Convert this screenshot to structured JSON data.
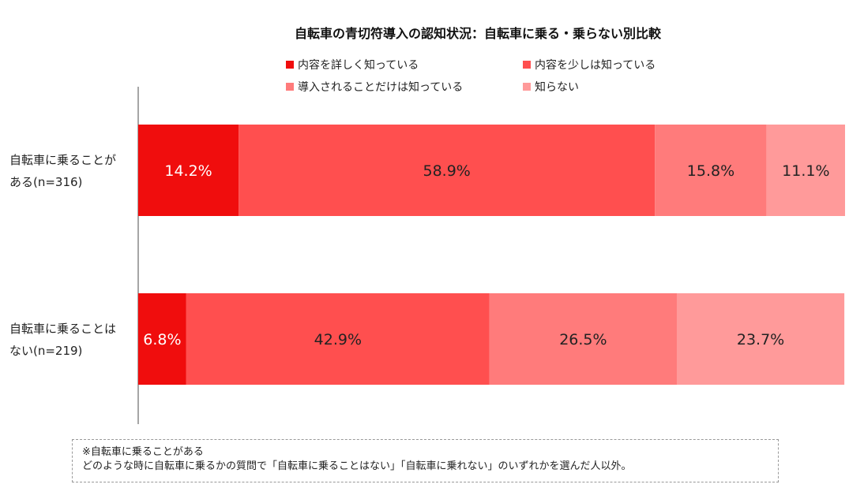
{
  "chart_data": {
    "type": "bar",
    "orientation": "horizontal",
    "stacked": true,
    "title": "自転車の青切符導入の認知状況：自転車に乗る・乗らない別比較",
    "categories": [
      [
        "自転車に乗ることが",
        "ある(n=316)"
      ],
      [
        "自転車に乗ることは",
        "ない(n=219)"
      ]
    ],
    "series": [
      {
        "name": "内容を詳しく知っている",
        "color": "#f00d0d",
        "values": [
          14.2,
          6.8
        ],
        "labels": [
          "14.2%",
          "6.8%"
        ]
      },
      {
        "name": "内容を少しは知っている",
        "color": "#ff4f4f",
        "values": [
          58.9,
          42.9
        ],
        "labels": [
          "58.9%",
          "42.9%"
        ]
      },
      {
        "name": "導入されることだけは知っている",
        "color": "#ff7b7b",
        "values": [
          15.8,
          26.5
        ],
        "labels": [
          "15.8%",
          "26.5%"
        ]
      },
      {
        "name": "知らない",
        "color": "#ff9a9a",
        "values": [
          11.1,
          23.7
        ],
        "labels": [
          "11.1%",
          "23.7%"
        ]
      }
    ],
    "xlim": [
      0,
      100
    ],
    "unit": "%",
    "legend": "top",
    "grid": false
  },
  "note": {
    "line1": "※自転車に乗ることがある",
    "line2": "どのような時に自転車に乗るかの質問で「自転車に乗ることはない」「自転車に乗れない」のいずれかを選んだ人以外。"
  }
}
